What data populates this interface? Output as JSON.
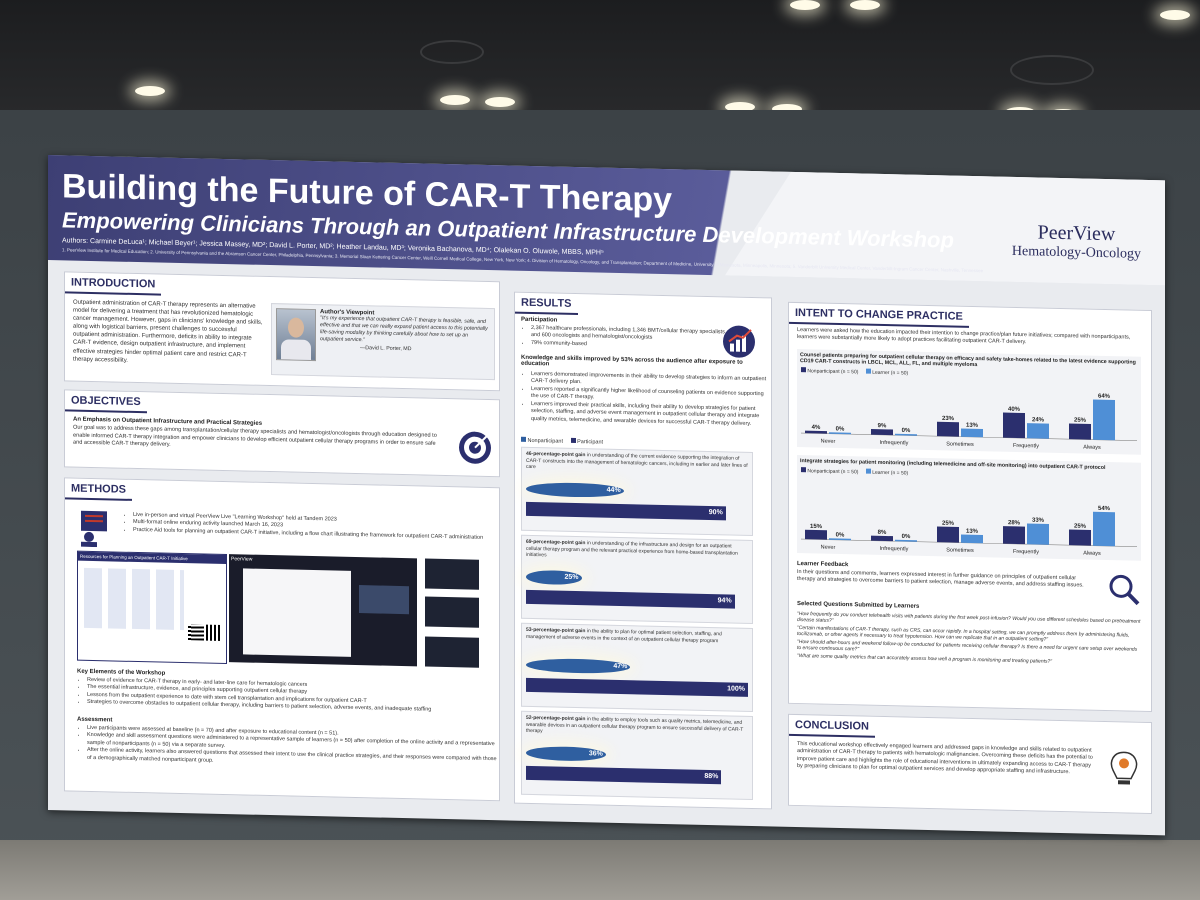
{
  "poster": {
    "title": "Building the Future of CAR-T Therapy",
    "subtitle": "Empowering Clinicians Through an Outpatient Infrastructure Development Workshop",
    "authors": "Authors: Carmine DeLuca¹; Michael Beyer¹; Jessica Massey, MD²; David L. Porter, MD²; Heather Landau, MD³; Veronika Bachanova, MD⁴; Olalekan O. Oluwole, MBBS, MPH⁵",
    "affiliations": "1. PeerView Institute for Medical Education; 2. University of Pennsylvania and the Abramson Cancer Center, Philadelphia, Pennsylvania; 3. Memorial Sloan Kettering Cancer Center, Weill Cornell Medical College, New York, New York; 4. Division of Hematology, Oncology, and Transplantation; Department of Medicine, University of Minnesota, Minneapolis, Minnesota; 5. Vanderbilt University Medical Center, Vanderbilt-Ingram Cancer Center, Nashville, Tennessee",
    "brand_line1": "PeerView",
    "brand_line2": "Hematology-Oncology"
  },
  "intro": {
    "heading": "INTRODUCTION",
    "body": "Outpatient administration of CAR-T therapy represents an alternative model for delivering a treatment that has revolutionized hematologic cancer management. However, gaps in clinicians' knowledge and skills, along with logistical barriers, present challenges to successful outpatient administration. Furthermore, deficits in ability to integrate CAR-T evidence, design outpatient infrastructure, and implement effective strategies hinder optimal patient care and restrict CAR-T therapy accessibility.",
    "viewpoint_title": "Author's Viewpoint",
    "viewpoint_quote": "\"It's my experience that outpatient CAR-T therapy is feasible, safe, and effective and that we can really expand patient access to this potentially life-saving modality by thinking carefully about how to set up an outpatient service.\"",
    "viewpoint_author": "—David L. Porter, MD"
  },
  "objectives": {
    "heading": "OBJECTIVES",
    "subheading": "An Emphasis on Outpatient Infrastructure and Practical Strategies",
    "body": "Our goal was to address these gaps among transplantation/cellular therapy specialists and hematologist/oncologists through education designed to enable informed CAR-T therapy integration and empower clinicians to develop efficient outpatient cellular therapy programs in order to ensure safe and accessible CAR-T therapy delivery."
  },
  "methods": {
    "heading": "METHODS",
    "bullets": [
      "Live in-person and virtual PeerView Live \"Learning Workshop\" held at Tandem 2023",
      "Multi-format online enduring activity launched March 16, 2023",
      "Practice Aid tools for planning an outpatient CAR-T initiative, including a flow chart illustrating the framework for outpatient CAR-T administration"
    ],
    "screenshot_title": "Resources for Planning an Outpatient CAR-T Initiative",
    "screenshot_brand": "PeerView",
    "key_heading": "Key Elements of the Workshop",
    "key_bullets": [
      "Review of evidence for CAR-T therapy in early- and later-line care for hematologic cancers",
      "The essential infrastructure, evidence, and principles supporting outpatient cellular therapy",
      "Lessons from the outpatient experience to date with stem cell transplantation and implications for outpatient CAR-T",
      "Strategies to overcome obstacles to outpatient cellular therapy, including barriers to patient selection, adverse events, and inadequate staffing"
    ],
    "assess_heading": "Assessment",
    "assess_bullets": [
      "Live participants were assessed at baseline (n = 70) and after exposure to educational content (n = 51).",
      "Knowledge and skill assessment questions were administered to a representative sample of learners (n = 50) after completion of the online activity and a representative sample of nonparticipants (n = 50) via a separate survey.",
      "After the online activity, learners also answered questions that assessed their intent to use the clinical practice strategies, and their responses were compared with those of a demographically matched nonparticipant group."
    ]
  },
  "results": {
    "heading": "RESULTS",
    "participation_heading": "Participation",
    "participation": [
      "2,367 healthcare professionals, including 1,346 BMT/cellular therapy specialists and 600 oncologists and hematologist/oncologists",
      "79% community-based"
    ],
    "knowledge_heading": "Knowledge and skills improved by 53% across the audience after exposure to education",
    "knowledge_bullets": [
      "Learners demonstrated improvements in their ability to develop strategies to inform an outpatient CAR-T delivery plan.",
      "Learners reported a significantly higher likelihood of counseling patients on evidence supporting the use of CAR-T therapy.",
      "Learners improved their practical skills, including their ability to develop strategies for patient selection, staffing, and adverse event management in outpatient cellular therapy and integrate quality metrics, telemedicine, and wearable devices for successful CAR-T therapy delivery."
    ],
    "legend_non": "Nonparticipant",
    "legend_part": "Participant",
    "gains": [
      {
        "bold": "46-percentage-point gain",
        "text": " in understanding of the current evidence supporting the integration of CAR-T constructs into the management of hematologic cancers, including in earlier and later lines of care",
        "non": 44,
        "part": 90,
        "non_label": "44%",
        "part_label": "90%"
      },
      {
        "bold": "69-percentage-point gain",
        "text": " in understanding of the infrastructure and design for an outpatient cellular therapy program and the relevant practical experience from home-based transplantation initiatives",
        "non": 25,
        "part": 94,
        "non_label": "25%",
        "part_label": "94%"
      },
      {
        "bold": "53-percentage-point gain",
        "text": " in the ability to plan for optimal patient selection, staffing, and management of adverse events in the context of an outpatient cellular therapy program",
        "non": 47,
        "part": 100,
        "non_label": "47%",
        "part_label": "100%"
      },
      {
        "bold": "52-percentage-point gain",
        "text": " in the ability to employ tools such as quality metrics, telemedicine, and wearable devices in an outpatient cellular therapy program to ensure successful delivery of CAR-T therapy",
        "non": 36,
        "part": 88,
        "non_label": "36%",
        "part_label": "88%"
      }
    ]
  },
  "intent": {
    "heading": "INTENT TO CHANGE PRACTICE",
    "intro": "Learners were asked how the education impacted their intention to change practice/plan future initiatives; compared with nonparticipants, learners were substantially more likely to adopt practices facilitating outpatient CAR-T delivery.",
    "legend_non": "Nonparticipant (n = 50)",
    "legend_learner": "Learner (n = 50)",
    "categories": [
      "Never",
      "Infrequently",
      "Sometimes",
      "Frequently",
      "Always"
    ],
    "chart1_title": "Counsel patients preparing for outpatient cellular therapy on efficacy and safety take-homes related to the latest evidence supporting CD19 CAR-T constructs in LBCL, MCL, ALL, FL, and multiple myeloma",
    "chart1_non": [
      4,
      9,
      23,
      40,
      25
    ],
    "chart1_learner": [
      0,
      0,
      13,
      24,
      64
    ],
    "chart2_title": "Integrate strategies for patient monitoring (including telemedicine and off-site monitoring) into outpatient CAR-T protocol",
    "chart2_non": [
      15,
      8,
      25,
      28,
      25
    ],
    "chart2_learner": [
      0,
      0,
      13,
      33,
      54
    ],
    "feedback_heading": "Learner Feedback",
    "feedback": "In their questions and comments, learners expressed interest in further guidance on principles of outpatient cellular therapy and strategies to overcome barriers to patient selection, manage adverse events, and address staffing issues.",
    "questions_heading": "Selected Questions Submitted by Learners",
    "questions": [
      "\"How frequently do you conduct telehealth visits with patients during the first week post-infusion? Would you use different schedules based on pretreatment disease status?\"",
      "\"Certain manifestations of CAR-T therapy, such as CRS, can occur rapidly. In a hospital setting, we can promptly address them by administering fluids, tocilizumab, or other agents if necessary to treat hypotension. How can we replicate that in an outpatient setting?\"",
      "\"How should after-hours and weekend follow-up be conducted for patients receiving cellular therapy? Is there a need for urgent care setup over weekends to ensure continuous care?\"",
      "\"What are some quality metrics that can accurately assess how well a program is monitoring and treating patients?\""
    ]
  },
  "conclusion": {
    "heading": "CONCLUSION",
    "body": "This educational workshop effectively engaged learners and addressed gaps in knowledge and skills related to outpatient administration of CAR-T therapy to patients with hematologic malignancies. Overcoming these deficits has the potential to improve patient care and highlights the role of educational interventions in ultimately expanding access to CAR-T therapy by preparing clinicians to plan for optimal outpatient services and develop appropriate staffing and infrastructure."
  },
  "colors": {
    "navy": "#2b2f6e",
    "learner_blue": "#4f8fd6",
    "banner": "#3d3f74"
  }
}
